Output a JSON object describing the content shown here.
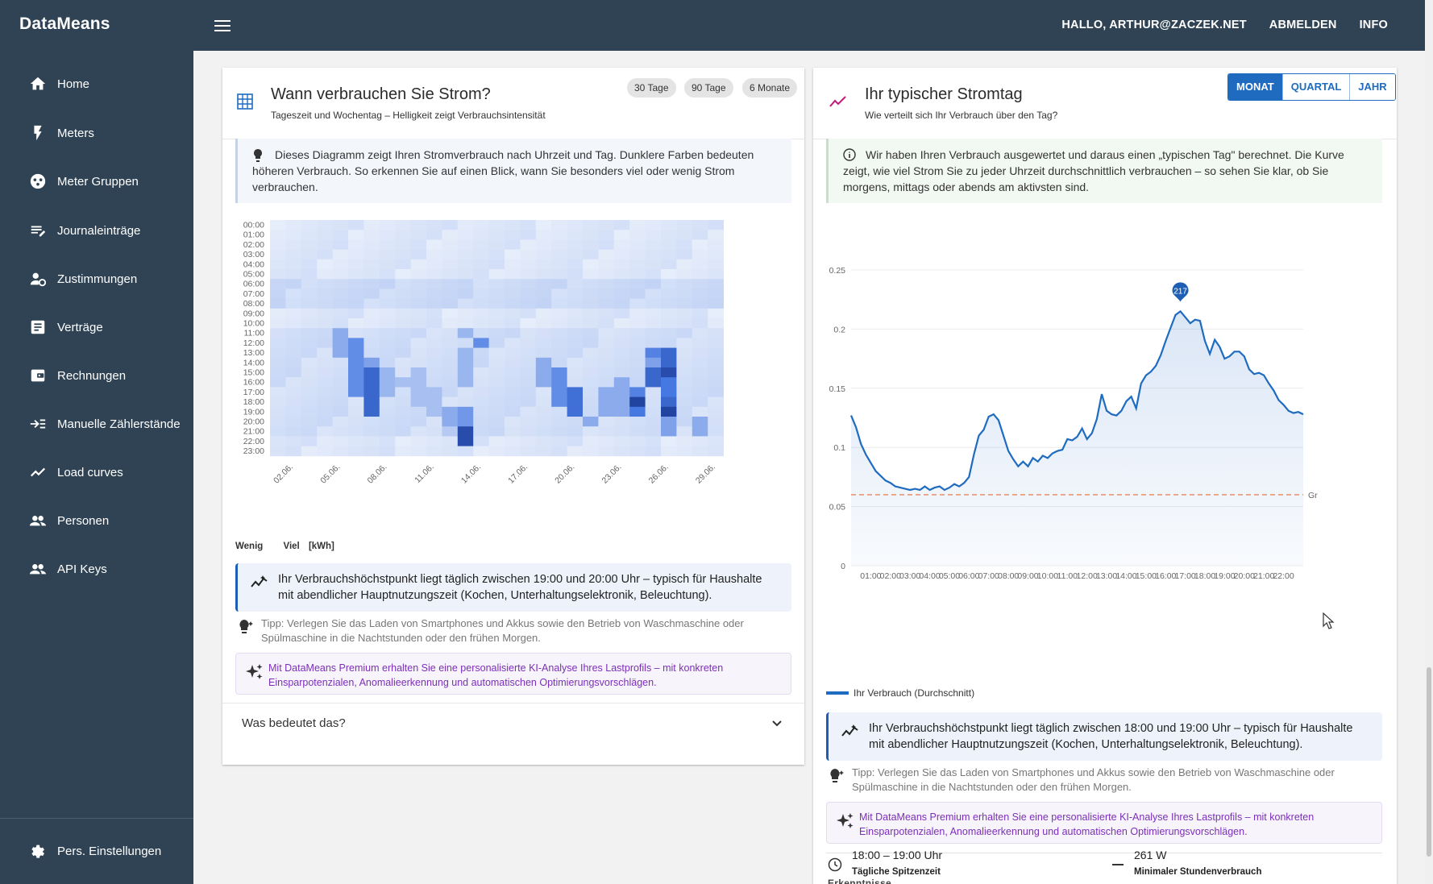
{
  "app": {
    "brand": "DataMeans"
  },
  "topnav": {
    "greeting": "HALLO, ARTHUR@ZACZEK.NET",
    "logout": "ABMELDEN",
    "info": "INFO"
  },
  "sidebar": {
    "items": [
      {
        "label": "Home",
        "icon": "home-icon"
      },
      {
        "label": "Meters",
        "icon": "bolt-icon"
      },
      {
        "label": "Meter Gruppen",
        "icon": "group-icon"
      },
      {
        "label": "Journaleinträge",
        "icon": "journal-icon"
      },
      {
        "label": "Zustimmungen",
        "icon": "consent-icon"
      },
      {
        "label": "Verträge",
        "icon": "contract-icon"
      },
      {
        "label": "Rechnungen",
        "icon": "wallet-icon"
      },
      {
        "label": "Manuelle Zählerstände",
        "icon": "input-icon"
      },
      {
        "label": "Load curves",
        "icon": "trend-icon"
      },
      {
        "label": "Personen",
        "icon": "people-icon"
      },
      {
        "label": "API Keys",
        "icon": "people-icon"
      }
    ],
    "settings": "Pers. Einstellungen"
  },
  "heatmap_card": {
    "title": "Wann verbrauchen Sie Strom?",
    "subtitle": "Tageszeit und Wochentag – Helligkeit zeigt Verbrauchsintensität",
    "chips": [
      "30 Tage",
      "90 Tage",
      "6 Monate"
    ],
    "info": "Dieses Diagramm zeigt Ihren Stromverbrauch nach Uhrzeit und Tag. Dunklere Farben bedeuten höheren Verbrauch. So erkennen Sie auf einen Blick, wann Sie besonders viel oder wenig Strom verbrauchen.",
    "legend_low": "Wenig",
    "legend_high": "Viel",
    "legend_unit": "[kWh]",
    "insight": "Ihr Verbrauchshöchstpunkt liegt täglich zwischen 19:00 und 20:00 Uhr – typisch für Haushalte mit abendlicher Hauptnutzungszeit (Kochen, Unterhaltungselektronik, Beleuchtung).",
    "tip": "Tipp: Verlegen Sie das Laden von Smartphones und Akkus sowie den Betrieb von Waschmaschine oder Spülmaschine in die Nachtstunden oder den frühen Morgen.",
    "premium": "Mit DataMeans Premium erhalten Sie eine personalisierte KI-Analyse Ihres Lastprofils – mit konkreten Einsparpotenzialen, Anomalieerkennung und automatischen Optimierungsvorschlägen.",
    "faq": "Was bedeutet das?"
  },
  "day_card": {
    "title": "Ihr typischer Stromtag",
    "subtitle": "Wie verteilt sich Ihr Verbrauch über den Tag?",
    "segments": [
      "MONAT",
      "QUARTAL",
      "JAHR"
    ],
    "info": "Wir haben Ihren Verbrauch ausgewertet und daraus einen „typischen Tag\" berechnet. Die Kurve zeigt, wie viel Strom Sie zu jeder Uhrzeit durchschnittlich verbrauchen – so sehen Sie klar, ob Sie morgens, mittags oder abends am aktivsten sind.",
    "baseline_label": "Gr",
    "peak_marker": "217",
    "legend": "Ihr Verbrauch (Durchschnitt)",
    "insight": "Ihr Verbrauchshöchstpunkt liegt täglich zwischen 18:00 und 19:00 Uhr – typisch für Haushalte mit abendlicher Hauptnutzungszeit (Kochen, Unterhaltungselektronik, Beleuchtung).",
    "tip": "Tipp: Verlegen Sie das Laden von Smartphones und Akkus sowie den Betrieb von Waschmaschine oder Spülmaschine in die Nachtstunden oder den frühen Morgen.",
    "premium": "Mit DataMeans Premium erhalten Sie eine personalisierte KI-Analyse Ihres Lastprofils – mit konkreten Einsparpotenzialen, Anomalieerkennung und automatischen Optimierungsvorschlägen.",
    "findings_title": "Erkenntnisse",
    "findings": [
      {
        "value": "18:00 – 19:00 Uhr",
        "label": "Tägliche Spitzenzeit",
        "icon": "clock-icon"
      },
      {
        "value": "261 W",
        "label": "Minimaler Stundenverbrauch",
        "icon": "dash-icon"
      }
    ]
  },
  "chart_data": [
    {
      "type": "heatmap",
      "title": "Wann verbrauchen Sie Strom?",
      "x_tick_labels": [
        "02.06.",
        "05.06.",
        "08.06.",
        "11.06.",
        "14.06.",
        "17.06.",
        "20.06.",
        "23.06.",
        "26.06.",
        "29.06."
      ],
      "y_labels": [
        "00:00",
        "01:00",
        "02:00",
        "03:00",
        "04:00",
        "05:00",
        "06:00",
        "07:00",
        "08:00",
        "09:00",
        "10:00",
        "11:00",
        "12:00",
        "13:00",
        "14:00",
        "15:00",
        "16:00",
        "17:00",
        "18:00",
        "19:00",
        "20:00",
        "21:00",
        "22:00",
        "23:00"
      ],
      "days": 29,
      "hot_cells": [
        {
          "day": 4,
          "hours": [
            11,
            12,
            13
          ],
          "level": 0.35
        },
        {
          "day": 5,
          "hours": [
            12,
            13,
            14,
            15,
            16,
            17
          ],
          "level": 0.5
        },
        {
          "day": 6,
          "hours": [
            14
          ],
          "level": 0.4
        },
        {
          "day": 6,
          "hours": [
            15,
            16,
            17,
            18,
            19
          ],
          "level": 0.7
        },
        {
          "day": 7,
          "hours": [
            15,
            16,
            17
          ],
          "level": 0.3
        },
        {
          "day": 8,
          "hours": [
            16
          ],
          "level": 0.25
        },
        {
          "day": 9,
          "hours": [
            15,
            16,
            17,
            18
          ],
          "level": 0.25
        },
        {
          "day": 10,
          "hours": [
            17,
            18,
            19
          ],
          "level": 0.25
        },
        {
          "day": 11,
          "hours": [
            19,
            20
          ],
          "level": 0.35
        },
        {
          "day": 11,
          "hours": [
            21
          ],
          "level": 0.2
        },
        {
          "day": 12,
          "hours": [
            11,
            13,
            14,
            15,
            16
          ],
          "level": 0.3
        },
        {
          "day": 12,
          "hours": [
            19,
            20
          ],
          "level": 0.45
        },
        {
          "day": 12,
          "hours": [
            21,
            22
          ],
          "level": 0.85
        },
        {
          "day": 13,
          "hours": [
            12
          ],
          "level": 0.5
        },
        {
          "day": 17,
          "hours": [
            14,
            15,
            16
          ],
          "level": 0.35
        },
        {
          "day": 18,
          "hours": [
            15,
            16,
            17,
            18
          ],
          "level": 0.5
        },
        {
          "day": 19,
          "hours": [
            17,
            18,
            19
          ],
          "level": 0.65
        },
        {
          "day": 20,
          "hours": [
            20
          ],
          "level": 0.35
        },
        {
          "day": 21,
          "hours": [
            17,
            18,
            19
          ],
          "level": 0.35
        },
        {
          "day": 22,
          "hours": [
            16,
            17,
            18,
            19
          ],
          "level": 0.35
        },
        {
          "day": 23,
          "hours": [
            17
          ],
          "level": 0.55
        },
        {
          "day": 23,
          "hours": [
            18
          ],
          "level": 0.9
        },
        {
          "day": 23,
          "hours": [
            19
          ],
          "level": 0.6
        },
        {
          "day": 24,
          "hours": [
            13
          ],
          "level": 0.55
        },
        {
          "day": 24,
          "hours": [
            14
          ],
          "level": 0.4
        },
        {
          "day": 24,
          "hours": [
            15,
            16
          ],
          "level": 0.7
        },
        {
          "day": 25,
          "hours": [
            13,
            14
          ],
          "level": 0.7
        },
        {
          "day": 25,
          "hours": [
            15
          ],
          "level": 0.85
        },
        {
          "day": 25,
          "hours": [
            16,
            17
          ],
          "level": 0.6
        },
        {
          "day": 25,
          "hours": [
            18
          ],
          "level": 0.7
        },
        {
          "day": 25,
          "hours": [
            19
          ],
          "level": 0.9
        },
        {
          "day": 25,
          "hours": [
            20,
            21
          ],
          "level": 0.4
        },
        {
          "day": 27,
          "hours": [
            20,
            21
          ],
          "level": 0.35
        }
      ]
    },
    {
      "type": "line",
      "title": "Ihr typischer Stromtag",
      "x_tick_labels": [
        "01:00",
        "02:00",
        "03:00",
        "04:00",
        "05:00",
        "06:00",
        "07:00",
        "08:00",
        "09:00",
        "10:00",
        "11:00",
        "12:00",
        "13:00",
        "14:00",
        "15:00",
        "16:00",
        "17:00",
        "18:00",
        "19:00",
        "20:00",
        "21:00",
        "22:00"
      ],
      "y_ticks": [
        "0.25",
        "0.2",
        "0.15",
        "0.1",
        "0.05",
        "0"
      ],
      "ylim": [
        0,
        0.25
      ],
      "series": [
        {
          "name": "Ihr Verbrauch (Durchschnitt)",
          "x": [
            0.0,
            0.25,
            0.5,
            0.75,
            1.0,
            1.25,
            1.5,
            1.75,
            2.0,
            2.25,
            2.5,
            2.75,
            3.0,
            3.25,
            3.5,
            3.75,
            4.0,
            4.25,
            4.5,
            4.75,
            5.0,
            5.25,
            5.5,
            5.75,
            6.0,
            6.25,
            6.5,
            6.75,
            7.0,
            7.25,
            7.5,
            7.75,
            8.0,
            8.25,
            8.5,
            8.75,
            9.0,
            9.25,
            9.5,
            9.75,
            10.0,
            10.25,
            10.5,
            10.75,
            11.0,
            11.25,
            11.5,
            11.75,
            12.0,
            12.25,
            12.5,
            12.75,
            13.0,
            13.25,
            13.5,
            13.75,
            14.0,
            14.25,
            14.5,
            14.75,
            15.0,
            15.25,
            15.5,
            15.75,
            16.0,
            16.25,
            16.5,
            16.75,
            17.0,
            17.25,
            17.5,
            17.75,
            18.0,
            18.25,
            18.5,
            18.75,
            19.0,
            19.25,
            19.5,
            19.75,
            20.0,
            20.25,
            20.5,
            20.75,
            21.0,
            21.25,
            21.5,
            21.75,
            22.0,
            22.25,
            22.5,
            22.75,
            23.0
          ],
          "values": [
            0.127,
            0.117,
            0.103,
            0.094,
            0.087,
            0.08,
            0.076,
            0.072,
            0.07,
            0.067,
            0.066,
            0.065,
            0.064,
            0.065,
            0.064,
            0.067,
            0.064,
            0.066,
            0.067,
            0.064,
            0.066,
            0.069,
            0.067,
            0.07,
            0.075,
            0.094,
            0.11,
            0.115,
            0.126,
            0.128,
            0.123,
            0.11,
            0.097,
            0.09,
            0.084,
            0.088,
            0.084,
            0.091,
            0.088,
            0.093,
            0.091,
            0.095,
            0.097,
            0.098,
            0.107,
            0.106,
            0.109,
            0.116,
            0.107,
            0.112,
            0.124,
            0.145,
            0.131,
            0.128,
            0.127,
            0.131,
            0.139,
            0.143,
            0.133,
            0.154,
            0.161,
            0.164,
            0.169,
            0.178,
            0.19,
            0.201,
            0.212,
            0.215,
            0.21,
            0.205,
            0.208,
            0.207,
            0.19,
            0.179,
            0.191,
            0.185,
            0.175,
            0.177,
            0.181,
            0.181,
            0.177,
            0.166,
            0.162,
            0.163,
            0.161,
            0.154,
            0.148,
            0.14,
            0.136,
            0.131,
            0.129,
            0.13,
            0.128
          ]
        }
      ],
      "baseline": 0.06,
      "peak_label": "217"
    }
  ]
}
